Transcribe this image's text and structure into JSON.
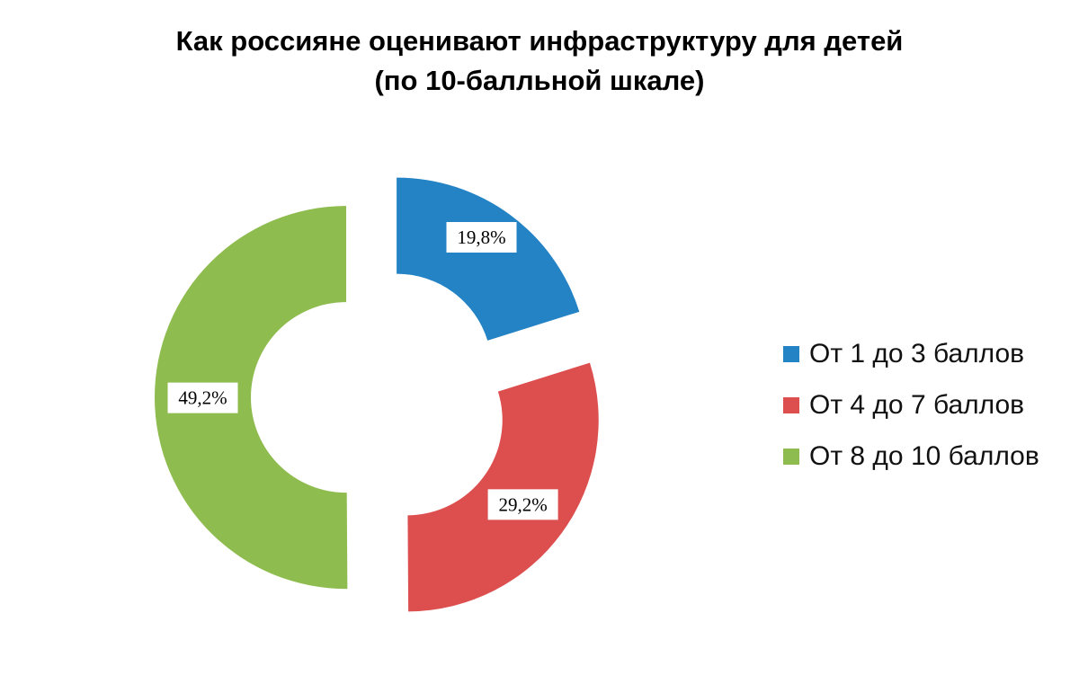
{
  "chart_data": {
    "type": "pie",
    "title_lines": [
      "Как россияне оценивают инфраструктуру для детей",
      "(по 10-балльной шкале)"
    ],
    "categories": [
      "От 1 до 3 баллов",
      "От 4 до 7 баллов",
      "От 8 до 10 баллов"
    ],
    "values": [
      19.8,
      29.2,
      49.2
    ],
    "value_labels": [
      "19,8%",
      "29,2%",
      "49,2%"
    ],
    "colors": [
      "#2483c5",
      "#dd4f4f",
      "#8fbc4f"
    ],
    "legend_position": "right",
    "style": "exploded doughnut"
  }
}
